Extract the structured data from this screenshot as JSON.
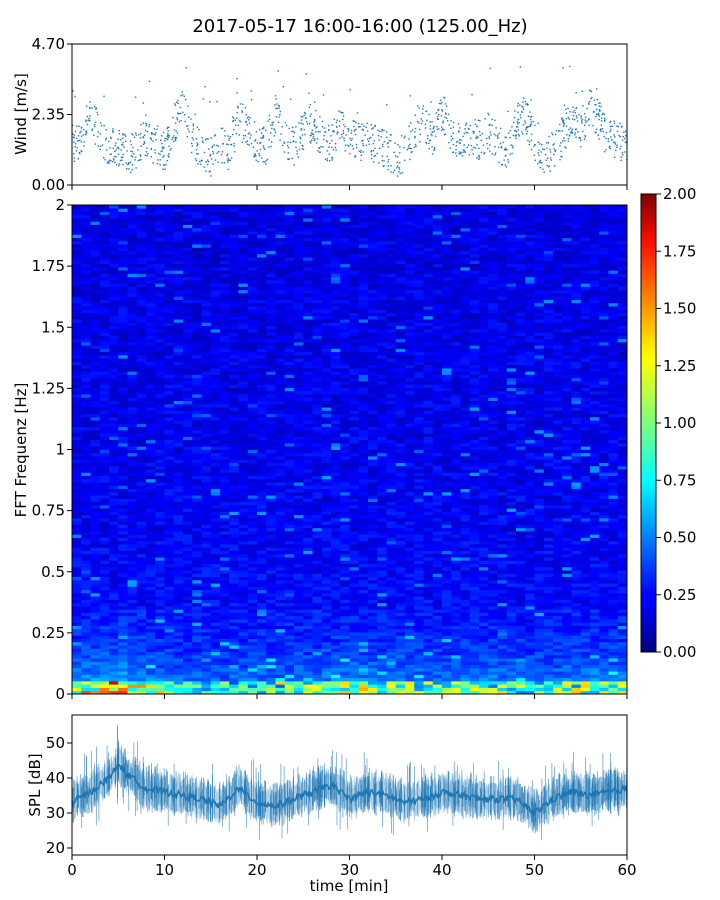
{
  "figure_title": "2017-05-17 16:00-16:00 (125.00_Hz)",
  "chart_data": [
    {
      "type": "scatter",
      "panel": "wind",
      "title": "",
      "xlabel": "",
      "ylabel": "Wind [m/s]",
      "xlim": [
        0,
        60
      ],
      "ylim": [
        0,
        4.7
      ],
      "yticks": [
        "0.00",
        "2.35",
        "4.70"
      ],
      "color": "#1f77b4",
      "series": [
        {
          "x": [
            0.2,
            1,
            2,
            3,
            4,
            5,
            6,
            7,
            8,
            9,
            10,
            11,
            12,
            13,
            14,
            15,
            16,
            17,
            18,
            19,
            20,
            21,
            22,
            23,
            24,
            25,
            26,
            27,
            28,
            29,
            30,
            31,
            32,
            33,
            34,
            35,
            36,
            37,
            38,
            39,
            40,
            41,
            42,
            43,
            44,
            45,
            46,
            47,
            48,
            49,
            50,
            51,
            52,
            53,
            54,
            55,
            56,
            57,
            58,
            59,
            59.8
          ],
          "values": [
            1.4,
            1.6,
            2.3,
            1.7,
            1.3,
            1.2,
            1.0,
            1.2,
            1.6,
            1.3,
            1.1,
            2.0,
            2.5,
            1.6,
            1.2,
            0.9,
            1.3,
            1.1,
            2.2,
            1.9,
            1.4,
            1.3,
            2.4,
            1.5,
            1.2,
            1.8,
            2.1,
            1.5,
            1.4,
            1.9,
            1.6,
            1.4,
            1.5,
            1.3,
            1.2,
            0.9,
            1.1,
            1.7,
            2.2,
            1.6,
            2.5,
            1.8,
            1.3,
            1.6,
            1.5,
            1.8,
            1.4,
            1.2,
            2.0,
            2.3,
            1.4,
            1.0,
            1.1,
            1.6,
            2.3,
            1.8,
            2.7,
            2.1,
            1.5,
            1.6,
            1.3
          ]
        }
      ]
    },
    {
      "type": "heatmap",
      "panel": "spectrogram",
      "title": "",
      "xlabel": "",
      "ylabel": "FFT Frequenz [Hz]",
      "xlim": [
        0,
        60
      ],
      "ylim": [
        0,
        2
      ],
      "yticks": [
        "0",
        "0.25",
        "0.5",
        "0.75",
        "1",
        "1.25",
        "1.5",
        "1.75",
        "2"
      ],
      "colormap": "jet",
      "colorbar": {
        "range": [
          0,
          2
        ],
        "ticks": [
          "0.00",
          "0.25",
          "0.50",
          "0.75",
          "1.00",
          "1.25",
          "1.50",
          "1.75",
          "2.00"
        ]
      },
      "description_values": {
        "time_min": [
          0,
          5,
          10,
          15,
          20,
          25,
          30,
          35,
          40,
          45,
          50,
          55,
          60
        ],
        "low_freq_intensity": [
          0.9,
          1.3,
          0.8,
          0.6,
          0.7,
          0.8,
          1.0,
          0.9,
          0.8,
          0.9,
          0.7,
          1.0,
          0.9
        ]
      }
    },
    {
      "type": "line",
      "panel": "spl",
      "title": "",
      "xlabel": "time [min]",
      "ylabel": "SPL [dB]",
      "xlim": [
        0,
        60
      ],
      "ylim": [
        18,
        58
      ],
      "yticks": [
        "20",
        "30",
        "40",
        "50"
      ],
      "xticks": [
        "0",
        "10",
        "20",
        "30",
        "40",
        "50",
        "60"
      ],
      "color": "#1f77b4",
      "series": [
        {
          "x": [
            0,
            2,
            4,
            5,
            6,
            8,
            10,
            12,
            14,
            16,
            18,
            20,
            22,
            24,
            26,
            28,
            30,
            32,
            34,
            36,
            38,
            40,
            42,
            44,
            46,
            48,
            50,
            52,
            54,
            56,
            58,
            60
          ],
          "values": [
            33,
            36,
            40,
            44,
            41,
            37,
            36,
            35,
            34,
            32,
            37,
            33,
            32,
            34,
            36,
            38,
            34,
            36,
            35,
            33,
            34,
            36,
            35,
            34,
            34,
            34,
            30,
            34,
            36,
            35,
            36,
            37
          ]
        }
      ]
    }
  ]
}
